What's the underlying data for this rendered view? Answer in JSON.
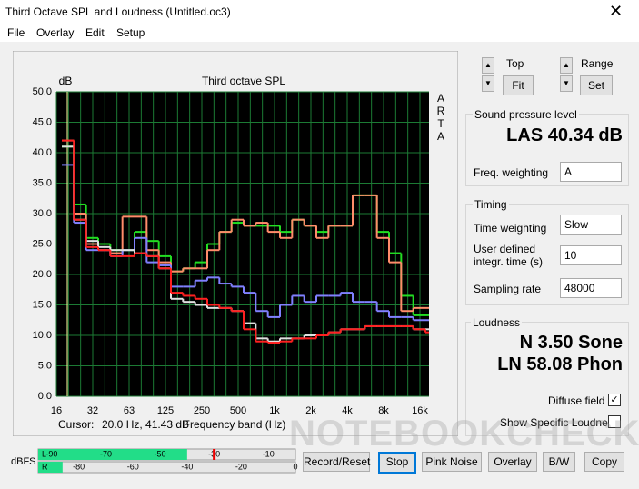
{
  "window": {
    "title": "Third Octave SPL and Loudness (Untitled.oc3)",
    "menu": [
      "File",
      "Overlay",
      "Edit",
      "Setup"
    ]
  },
  "chart_data": {
    "type": "step",
    "title": "Third octave SPL",
    "y_label": "dB",
    "side_label": "ARTA",
    "x_label": "Frequency band (Hz)",
    "cursor_label": "Cursor:",
    "cursor_value": "20.0 Hz, 41.43 dB",
    "categories": [
      "16",
      null,
      null,
      "32",
      null,
      null,
      "63",
      null,
      null,
      "125",
      null,
      null,
      "250",
      null,
      null,
      "500",
      null,
      null,
      "1k",
      null,
      null,
      "2k",
      null,
      null,
      "4k",
      null,
      null,
      "8k",
      null,
      null,
      "16k"
    ],
    "ylim": [
      0,
      50
    ],
    "yticks": [
      {
        "value": 0,
        "label": "0.0"
      },
      {
        "value": 5,
        "label": "5.0"
      },
      {
        "value": 10,
        "label": "10.0"
      },
      {
        "value": 15,
        "label": "15.0"
      },
      {
        "value": 20,
        "label": "20.0"
      },
      {
        "value": 25,
        "label": "25.0"
      },
      {
        "value": 30,
        "label": "30.0"
      },
      {
        "value": 35,
        "label": "35.0"
      },
      {
        "value": 40,
        "label": "40.0"
      },
      {
        "value": 45,
        "label": "45.0"
      },
      {
        "value": 50,
        "label": "50.0"
      }
    ],
    "grid": true,
    "series": [
      {
        "color": "#22dd22",
        "values": [
          41,
          31.5,
          26,
          25,
          24,
          24,
          27,
          25.5,
          23,
          20.5,
          21,
          22,
          25,
          27,
          28.5,
          28,
          28,
          28,
          27,
          29,
          28,
          27,
          28,
          28,
          33,
          33,
          27,
          23.5,
          16.5,
          13.3,
          13.3
        ]
      },
      {
        "color": "#ff8c6a",
        "values": [
          42,
          30,
          25,
          24,
          23.5,
          29.5,
          29.5,
          24,
          22,
          20.5,
          21,
          21,
          24,
          27,
          29,
          28,
          28.5,
          27,
          26,
          29,
          28,
          26,
          28,
          28,
          33,
          33,
          26,
          22,
          14,
          14.5,
          14.5
        ]
      },
      {
        "color": "#8080ff",
        "values": [
          38,
          28.5,
          24,
          24,
          23,
          24,
          26,
          22,
          21.5,
          18,
          18,
          19,
          19.5,
          18.5,
          18,
          17,
          14,
          13,
          15,
          16.5,
          15.5,
          16.5,
          16.5,
          17,
          15.5,
          15.5,
          14,
          13,
          13,
          12.5,
          12.5
        ]
      },
      {
        "color": "#e0e0e0",
        "values": [
          41,
          29,
          25.5,
          24.5,
          24,
          24,
          23.5,
          23,
          21,
          16,
          15.5,
          15,
          14.5,
          14.5,
          14,
          12,
          9.5,
          9,
          9.5,
          9.5,
          10,
          10,
          10.5,
          11,
          11,
          11.5,
          11.5,
          11.5,
          11.5,
          11,
          11
        ]
      },
      {
        "color": "#ff2020",
        "values": [
          42,
          29,
          24.5,
          24,
          23,
          23,
          23.5,
          23,
          21,
          17,
          16.5,
          16,
          15,
          14.5,
          14,
          11,
          9,
          8.8,
          9,
          9.5,
          9.5,
          10,
          10.5,
          11,
          11,
          11.5,
          11.5,
          11.5,
          11.5,
          11,
          10.5
        ]
      }
    ]
  },
  "meter": {
    "unit": "dBFS",
    "channels": [
      "L",
      "R"
    ],
    "levels": [
      -40,
      -86
    ],
    "peak": -30,
    "range": [
      -95,
      0
    ],
    "L_ticks": [
      -90,
      -70,
      -50,
      -30,
      -10
    ],
    "R_ticks": [
      -80,
      -60,
      -40,
      -20,
      0
    ]
  },
  "controls": {
    "top": "Top",
    "fit": "Fit",
    "range": "Range",
    "set": "Set",
    "spl": {
      "heading": "Sound pressure level",
      "reading": "LAS 40.34 dB",
      "weighting_label": "Freq. weighting",
      "weighting": "A"
    },
    "timing": {
      "heading": "Timing",
      "time_weighting_label": "Time weighting",
      "time_weighting": "Slow",
      "integr_label": "User defined integr. time (s)",
      "integr": "10",
      "rate_label": "Sampling rate",
      "rate": "48000"
    },
    "loudness": {
      "heading": "Loudness",
      "n": "N 3.50 Sone",
      "ln": "LN 58.08 Phon",
      "diffuse": "Diffuse field",
      "specific": "Show Specific Loudness"
    },
    "buttons": [
      "Record/Reset",
      "Stop",
      "Pink Noise",
      "Overlay",
      "B/W",
      "Copy"
    ]
  },
  "watermark": "NOTEBOOKCHECK"
}
